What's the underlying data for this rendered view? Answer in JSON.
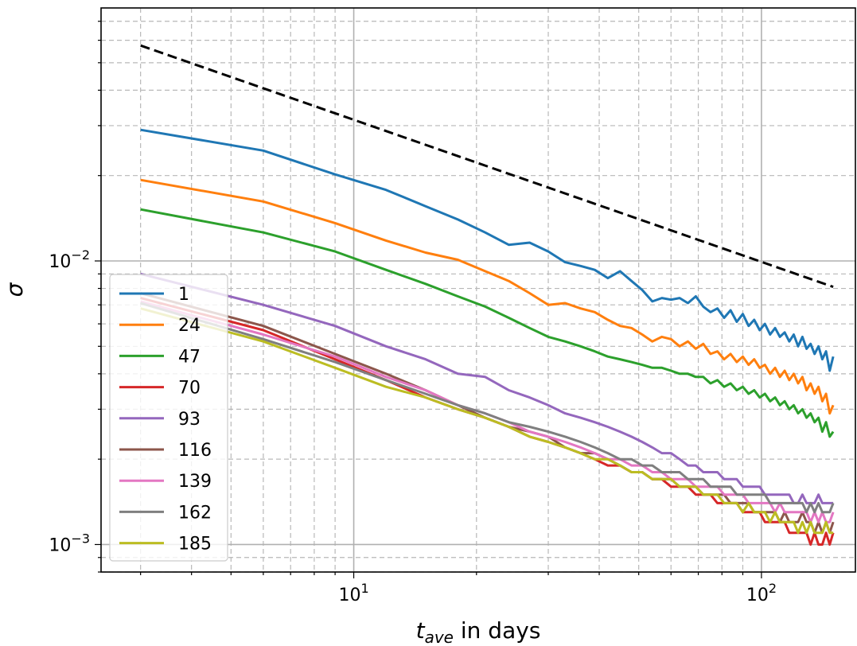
{
  "chart_data": {
    "type": "line",
    "xscale": "log",
    "yscale": "log",
    "xlim": [
      2.4,
      170
    ],
    "ylim": [
      0.0008,
      0.078
    ],
    "xlabel_base": "t",
    "xlabel_sub": "ave",
    "xlabel_rest": " in days",
    "ylabel": "σ",
    "grid": true,
    "legend_position": "lower-left",
    "x_ticks": [
      {
        "base": "10",
        "exp": "1",
        "value": 10
      },
      {
        "base": "10",
        "exp": "2",
        "value": 100
      }
    ],
    "y_ticks": [
      {
        "base": "10",
        "exp": "−2",
        "value": 0.01
      },
      {
        "base": "10",
        "exp": "−3",
        "value": 0.001
      }
    ],
    "reference_line": {
      "style": "dashed",
      "color": "#000000",
      "x": [
        3,
        150
      ],
      "y": [
        0.0575,
        0.0081
      ]
    },
    "series": [
      {
        "name": "1",
        "color": "#1f77b4",
        "x": [
          3,
          6,
          9,
          12,
          15,
          18,
          21,
          24,
          27,
          30,
          33,
          36,
          39,
          42,
          45,
          48,
          51,
          54,
          57,
          60,
          63,
          66,
          69,
          72,
          75,
          78,
          81,
          84,
          87,
          90,
          93,
          96,
          99,
          102,
          105,
          108,
          111,
          114,
          117,
          120,
          123,
          126,
          129,
          132,
          135,
          138,
          141,
          144,
          147,
          150
        ],
        "y": [
          0.029,
          0.0245,
          0.0202,
          0.0178,
          0.0156,
          0.014,
          0.0126,
          0.0114,
          0.0116,
          0.0108,
          0.0099,
          0.0096,
          0.0093,
          0.0087,
          0.0092,
          0.0085,
          0.0079,
          0.0072,
          0.0074,
          0.0073,
          0.0074,
          0.0071,
          0.0075,
          0.0069,
          0.0066,
          0.0068,
          0.0063,
          0.0067,
          0.0061,
          0.0065,
          0.0059,
          0.0062,
          0.0057,
          0.006,
          0.0055,
          0.0058,
          0.0054,
          0.0056,
          0.0052,
          0.0055,
          0.005,
          0.0054,
          0.0049,
          0.0051,
          0.0047,
          0.005,
          0.0045,
          0.0048,
          0.0041,
          0.0046
        ]
      },
      {
        "name": "24",
        "color": "#ff7f0e",
        "x": [
          3,
          6,
          9,
          12,
          15,
          18,
          21,
          24,
          27,
          30,
          33,
          36,
          39,
          42,
          45,
          48,
          51,
          54,
          57,
          60,
          63,
          66,
          69,
          72,
          75,
          78,
          81,
          84,
          87,
          90,
          93,
          96,
          99,
          102,
          105,
          108,
          111,
          114,
          117,
          120,
          123,
          126,
          129,
          132,
          135,
          138,
          141,
          144,
          147,
          150
        ],
        "y": [
          0.0193,
          0.0162,
          0.0136,
          0.0118,
          0.0107,
          0.0101,
          0.0092,
          0.0085,
          0.0077,
          0.007,
          0.0071,
          0.0068,
          0.0066,
          0.0062,
          0.0059,
          0.0058,
          0.0055,
          0.0052,
          0.0054,
          0.0053,
          0.005,
          0.0052,
          0.0049,
          0.0051,
          0.0047,
          0.0048,
          0.0045,
          0.0047,
          0.0044,
          0.0046,
          0.0043,
          0.0045,
          0.0042,
          0.0043,
          0.004,
          0.0042,
          0.0039,
          0.0041,
          0.0038,
          0.004,
          0.0037,
          0.0039,
          0.0035,
          0.0037,
          0.0034,
          0.0036,
          0.0032,
          0.0034,
          0.0029,
          0.0031
        ]
      },
      {
        "name": "47",
        "color": "#2ca02c",
        "x": [
          3,
          6,
          9,
          12,
          15,
          18,
          21,
          24,
          27,
          30,
          33,
          36,
          39,
          42,
          45,
          48,
          51,
          54,
          57,
          60,
          63,
          66,
          69,
          72,
          75,
          78,
          81,
          84,
          87,
          90,
          93,
          96,
          99,
          102,
          105,
          108,
          111,
          114,
          117,
          120,
          123,
          126,
          129,
          132,
          135,
          138,
          141,
          144,
          147,
          150
        ],
        "y": [
          0.0152,
          0.0126,
          0.0108,
          0.0093,
          0.0083,
          0.0075,
          0.0069,
          0.0063,
          0.0058,
          0.0054,
          0.0052,
          0.005,
          0.0048,
          0.0046,
          0.0045,
          0.0044,
          0.0043,
          0.0042,
          0.0042,
          0.0041,
          0.004,
          0.004,
          0.0039,
          0.0039,
          0.0037,
          0.0038,
          0.0036,
          0.0037,
          0.0035,
          0.0036,
          0.0034,
          0.0035,
          0.0033,
          0.0034,
          0.0032,
          0.0033,
          0.0031,
          0.0032,
          0.003,
          0.0031,
          0.0029,
          0.003,
          0.0028,
          0.0029,
          0.0027,
          0.0028,
          0.0025,
          0.0027,
          0.0024,
          0.0025
        ]
      },
      {
        "name": "70",
        "color": "#d62728",
        "x": [
          3,
          6,
          9,
          12,
          15,
          18,
          21,
          24,
          27,
          30,
          33,
          36,
          39,
          42,
          45,
          48,
          51,
          54,
          57,
          60,
          63,
          66,
          69,
          72,
          75,
          78,
          81,
          84,
          87,
          90,
          93,
          96,
          99,
          102,
          105,
          108,
          111,
          114,
          117,
          120,
          123,
          126,
          129,
          132,
          135,
          138,
          141,
          144,
          147,
          150
        ],
        "y": [
          0.0074,
          0.0057,
          0.0045,
          0.0038,
          0.0033,
          0.003,
          0.0028,
          0.0026,
          0.0024,
          0.0023,
          0.0022,
          0.0021,
          0.002,
          0.0019,
          0.0019,
          0.0018,
          0.0018,
          0.0017,
          0.0017,
          0.0016,
          0.0016,
          0.0016,
          0.0015,
          0.0015,
          0.0015,
          0.0014,
          0.0014,
          0.0014,
          0.0014,
          0.0013,
          0.0013,
          0.0013,
          0.0013,
          0.0012,
          0.0012,
          0.0012,
          0.0012,
          0.0012,
          0.0011,
          0.0011,
          0.0011,
          0.0011,
          0.0011,
          0.001,
          0.0011,
          0.001,
          0.001,
          0.0011,
          0.001,
          0.0011
        ]
      },
      {
        "name": "93",
        "color": "#9467bd",
        "x": [
          3,
          6,
          9,
          12,
          15,
          18,
          21,
          24,
          27,
          30,
          33,
          36,
          39,
          42,
          45,
          48,
          51,
          54,
          57,
          60,
          63,
          66,
          69,
          72,
          75,
          78,
          81,
          84,
          87,
          90,
          93,
          96,
          99,
          102,
          105,
          108,
          111,
          114,
          117,
          120,
          123,
          126,
          129,
          132,
          135,
          138,
          141,
          144,
          147,
          150
        ],
        "y": [
          0.009,
          0.007,
          0.0059,
          0.005,
          0.0045,
          0.004,
          0.0039,
          0.0035,
          0.0033,
          0.0031,
          0.0029,
          0.0028,
          0.0027,
          0.0026,
          0.0025,
          0.0024,
          0.0023,
          0.0022,
          0.0021,
          0.0021,
          0.002,
          0.0019,
          0.0019,
          0.0018,
          0.0018,
          0.0018,
          0.0017,
          0.0017,
          0.0017,
          0.0016,
          0.0016,
          0.0016,
          0.0016,
          0.0015,
          0.0015,
          0.0015,
          0.0015,
          0.0015,
          0.0015,
          0.0014,
          0.0014,
          0.0015,
          0.0014,
          0.0014,
          0.0014,
          0.0015,
          0.0014,
          0.0014,
          0.0014,
          0.0014
        ]
      },
      {
        "name": "116",
        "color": "#8c564b",
        "x": [
          3,
          6,
          9,
          12,
          15,
          18,
          21,
          24,
          27,
          30,
          33,
          36,
          39,
          42,
          45,
          48,
          51,
          54,
          57,
          60,
          63,
          66,
          69,
          72,
          75,
          78,
          81,
          84,
          87,
          90,
          93,
          96,
          99,
          102,
          105,
          108,
          111,
          114,
          117,
          120,
          123,
          126,
          129,
          132,
          135,
          138,
          141,
          144,
          147,
          150
        ],
        "y": [
          0.0077,
          0.0059,
          0.0047,
          0.004,
          0.0035,
          0.0031,
          0.0028,
          0.0026,
          0.0025,
          0.0024,
          0.0022,
          0.0021,
          0.0021,
          0.002,
          0.0019,
          0.0018,
          0.0018,
          0.0017,
          0.0017,
          0.0017,
          0.0016,
          0.0016,
          0.0016,
          0.0015,
          0.0015,
          0.0015,
          0.0015,
          0.0014,
          0.0014,
          0.0014,
          0.0014,
          0.0013,
          0.0013,
          0.0013,
          0.0013,
          0.0013,
          0.0012,
          0.0013,
          0.0012,
          0.0012,
          0.0012,
          0.0013,
          0.0012,
          0.0012,
          0.0011,
          0.0012,
          0.0011,
          0.0012,
          0.0011,
          0.0012
        ]
      },
      {
        "name": "139",
        "color": "#e377c2",
        "x": [
          3,
          6,
          9,
          12,
          15,
          18,
          21,
          24,
          27,
          30,
          33,
          36,
          39,
          42,
          45,
          48,
          51,
          54,
          57,
          60,
          63,
          66,
          69,
          72,
          75,
          78,
          81,
          84,
          87,
          90,
          93,
          96,
          99,
          102,
          105,
          108,
          111,
          114,
          117,
          120,
          123,
          126,
          129,
          132,
          135,
          138,
          141,
          144,
          147,
          150
        ],
        "y": [
          0.0072,
          0.0055,
          0.0046,
          0.0039,
          0.0035,
          0.0031,
          0.0029,
          0.0027,
          0.0025,
          0.0024,
          0.0023,
          0.0022,
          0.0021,
          0.002,
          0.002,
          0.0019,
          0.0019,
          0.0018,
          0.0018,
          0.0017,
          0.0017,
          0.0017,
          0.0016,
          0.0016,
          0.0016,
          0.0016,
          0.0015,
          0.0015,
          0.0015,
          0.0015,
          0.0014,
          0.0014,
          0.0014,
          0.0014,
          0.0014,
          0.0013,
          0.0014,
          0.0013,
          0.0013,
          0.0013,
          0.0013,
          0.0013,
          0.0013,
          0.0012,
          0.0013,
          0.0012,
          0.0013,
          0.0012,
          0.0012,
          0.0013
        ]
      },
      {
        "name": "162",
        "color": "#7f7f7f",
        "x": [
          3,
          6,
          9,
          12,
          15,
          18,
          21,
          24,
          27,
          30,
          33,
          36,
          39,
          42,
          45,
          48,
          51,
          54,
          57,
          60,
          63,
          66,
          69,
          72,
          75,
          78,
          81,
          84,
          87,
          90,
          93,
          96,
          99,
          102,
          105,
          108,
          111,
          114,
          117,
          120,
          123,
          126,
          129,
          132,
          135,
          138,
          141,
          144,
          147,
          150
        ],
        "y": [
          0.0071,
          0.0053,
          0.0044,
          0.0038,
          0.0034,
          0.0031,
          0.0029,
          0.0027,
          0.0026,
          0.0025,
          0.0024,
          0.0023,
          0.0022,
          0.0021,
          0.002,
          0.002,
          0.0019,
          0.0019,
          0.0018,
          0.0018,
          0.0018,
          0.0017,
          0.0017,
          0.0017,
          0.0016,
          0.0016,
          0.0016,
          0.0016,
          0.0015,
          0.0015,
          0.0015,
          0.0015,
          0.0015,
          0.0015,
          0.0014,
          0.0014,
          0.0014,
          0.0014,
          0.0014,
          0.0014,
          0.0014,
          0.0014,
          0.0013,
          0.0014,
          0.0013,
          0.0014,
          0.0013,
          0.0013,
          0.0013,
          0.0014
        ]
      },
      {
        "name": "185",
        "color": "#bcbd22",
        "x": [
          3,
          6,
          9,
          12,
          15,
          18,
          21,
          24,
          27,
          30,
          33,
          36,
          39,
          42,
          45,
          48,
          51,
          54,
          57,
          60,
          63,
          66,
          69,
          72,
          75,
          78,
          81,
          84,
          87,
          90,
          93,
          96,
          99,
          102,
          105,
          108,
          111,
          114,
          117,
          120,
          123,
          126,
          129,
          132,
          135,
          138,
          141,
          144,
          147,
          150
        ],
        "y": [
          0.0068,
          0.0052,
          0.0042,
          0.0036,
          0.0033,
          0.003,
          0.0028,
          0.0026,
          0.0024,
          0.0023,
          0.0022,
          0.0021,
          0.002,
          0.002,
          0.0019,
          0.0018,
          0.0018,
          0.0017,
          0.0017,
          0.0017,
          0.0016,
          0.0016,
          0.0016,
          0.0015,
          0.0015,
          0.0015,
          0.0014,
          0.0014,
          0.0014,
          0.0013,
          0.0014,
          0.0013,
          0.0013,
          0.0013,
          0.0012,
          0.0013,
          0.0012,
          0.0012,
          0.0012,
          0.0012,
          0.0011,
          0.0012,
          0.0011,
          0.0012,
          0.0011,
          0.0011,
          0.0011,
          0.0012,
          0.0011,
          0.0011
        ]
      }
    ]
  }
}
